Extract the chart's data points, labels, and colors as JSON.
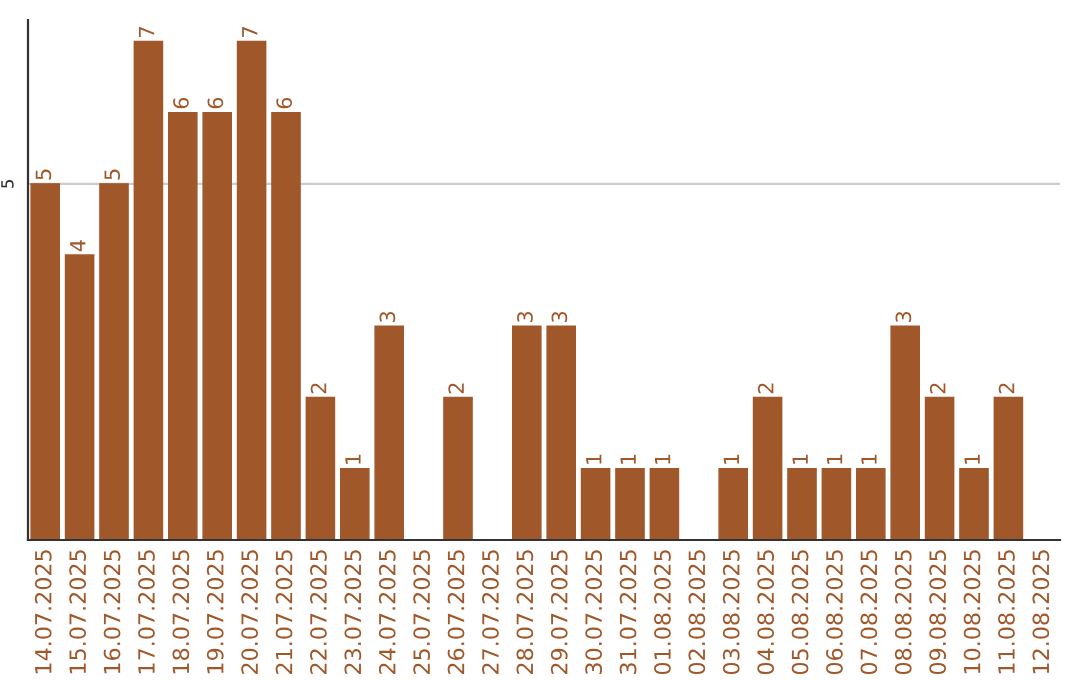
{
  "chart_data": {
    "type": "bar",
    "categories": [
      "14.07.2025",
      "15.07.2025",
      "16.07.2025",
      "17.07.2025",
      "18.07.2025",
      "19.07.2025",
      "20.07.2025",
      "21.07.2025",
      "22.07.2025",
      "23.07.2025",
      "24.07.2025",
      "25.07.2025",
      "26.07.2025",
      "27.07.2025",
      "28.07.2025",
      "29.07.2025",
      "30.07.2025",
      "31.07.2025",
      "01.08.2025",
      "02.08.2025",
      "03.08.2025",
      "04.08.2025",
      "05.08.2025",
      "06.08.2025",
      "07.08.2025",
      "08.08.2025",
      "09.08.2025",
      "10.08.2025",
      "11.08.2025",
      "12.08.2025"
    ],
    "values": [
      5,
      4,
      5,
      7,
      6,
      6,
      7,
      6,
      2,
      1,
      3,
      0,
      2,
      0,
      3,
      3,
      1,
      1,
      1,
      0,
      1,
      2,
      1,
      1,
      1,
      3,
      2,
      1,
      2,
      0
    ],
    "value_labels": [
      "5",
      "4",
      "5",
      "7",
      "6",
      "6",
      "7",
      "6",
      "2",
      "1",
      "3",
      null,
      "2",
      null,
      "3",
      "3",
      "1",
      "1",
      "1",
      null,
      "1",
      "2",
      "1",
      "1",
      "1",
      "3",
      "2",
      "1",
      "2",
      null
    ],
    "color": "#a0582a",
    "ylim": [
      0,
      7.3
    ],
    "yticks": [
      5
    ],
    "grid": "y"
  }
}
